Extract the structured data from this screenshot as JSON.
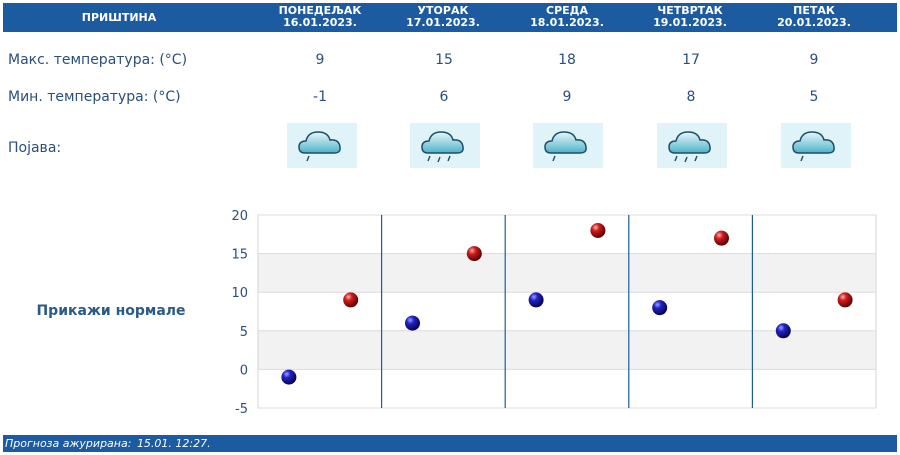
{
  "header": {
    "city": "ПРИШТИНА",
    "days": [
      {
        "name": "ПОНЕДЕЉАК",
        "date": "16.01.2023."
      },
      {
        "name": "УТОРАК",
        "date": "17.01.2023."
      },
      {
        "name": "СРЕДА",
        "date": "18.01.2023."
      },
      {
        "name": "ЧЕТВРТАК",
        "date": "19.01.2023."
      },
      {
        "name": "ПЕТАК",
        "date": "20.01.2023."
      }
    ]
  },
  "rows": {
    "max_label": "Макс. температура: (°C)",
    "min_label": "Мин. температура: (°C)",
    "phenomenon_label": "Појава:",
    "max": [
      "9",
      "15",
      "18",
      "17",
      "9"
    ],
    "min": [
      "-1",
      "6",
      "9",
      "8",
      "5"
    ],
    "icons": [
      "cloud-light-rain-icon",
      "cloud-rain-icon",
      "cloud-light-rain-icon",
      "cloud-rain-icon",
      "cloud-light-rain-icon"
    ]
  },
  "normals_link": "Прикажи нормале",
  "chart_data": {
    "type": "scatter",
    "ylim": [
      -5,
      20
    ],
    "yticks": [
      "20",
      "15",
      "10",
      "5",
      "0",
      "-5"
    ],
    "series": [
      {
        "color": "#1a1aa8",
        "values": [
          -1,
          6,
          9,
          8,
          5
        ]
      },
      {
        "color": "#c01818",
        "values": [
          9,
          15,
          18,
          17,
          9
        ]
      }
    ],
    "grid": true
  },
  "footer": {
    "updated_label": "Прогноза ажурирана:",
    "updated_value": "15.01. 12:27."
  },
  "colors": {
    "header_bg": "#1d5ba0",
    "text": "#2a4f7c",
    "min_dot": "#1a1aa8",
    "max_dot": "#c01818"
  }
}
